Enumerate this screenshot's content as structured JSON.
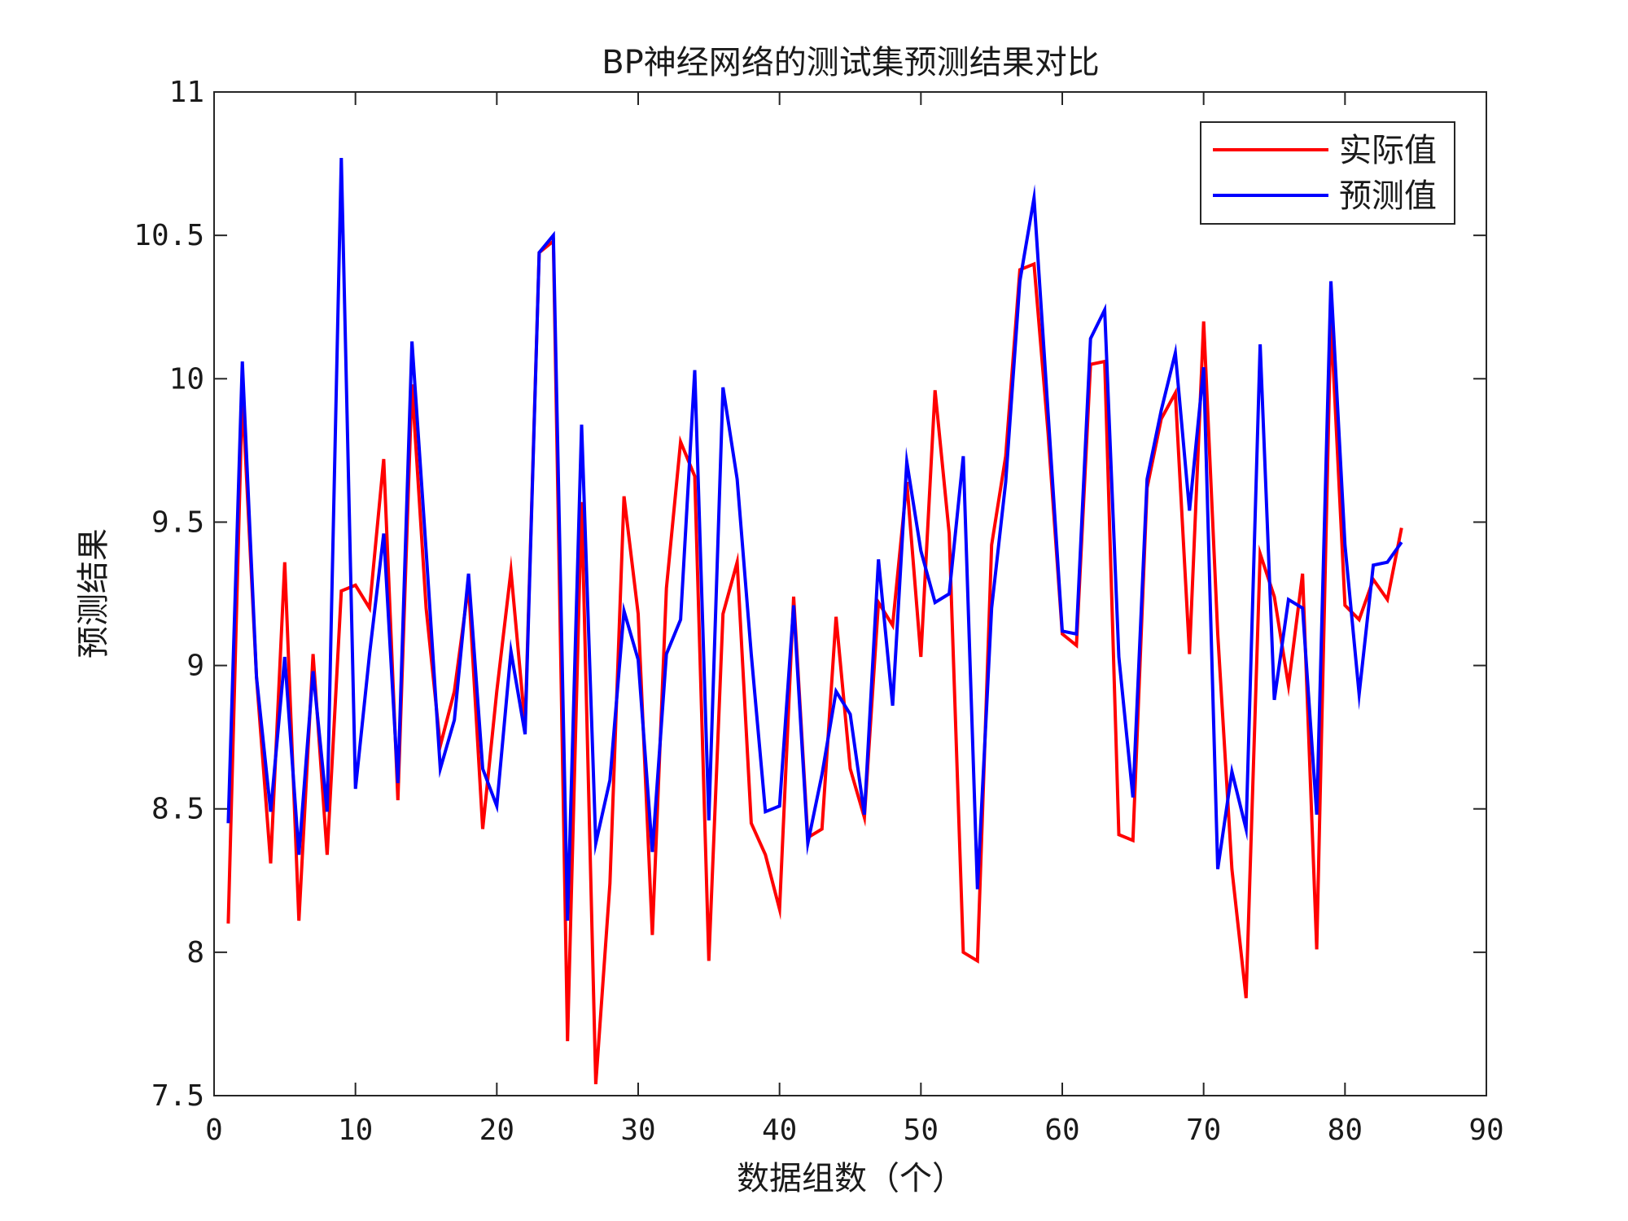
{
  "chart_data": {
    "type": "line",
    "title": "BP神经网络的测试集预测结果对比",
    "xlabel": "数据组数（个）",
    "ylabel": "预测结果",
    "xlim": [
      0,
      90
    ],
    "ylim": [
      7.5,
      11
    ],
    "xticks": [
      0,
      10,
      20,
      30,
      40,
      50,
      60,
      70,
      80,
      90
    ],
    "yticks": [
      7.5,
      8,
      8.5,
      9,
      9.5,
      10,
      10.5,
      11
    ],
    "ytick_labels": [
      "7.5",
      "8",
      "8.5",
      "9",
      "9.5",
      "10",
      "10.5",
      "11"
    ],
    "grid": false,
    "legend_position": "top-right",
    "x": [
      1,
      2,
      3,
      4,
      5,
      6,
      7,
      8,
      9,
      10,
      11,
      12,
      13,
      14,
      15,
      16,
      17,
      18,
      19,
      20,
      21,
      22,
      23,
      24,
      25,
      26,
      27,
      28,
      29,
      30,
      31,
      32,
      33,
      34,
      35,
      36,
      37,
      38,
      39,
      40,
      41,
      42,
      43,
      44,
      45,
      46,
      47,
      48,
      49,
      50,
      51,
      52,
      53,
      54,
      55,
      56,
      57,
      58,
      59,
      60,
      61,
      62,
      63,
      64,
      65,
      66,
      67,
      68,
      69,
      70,
      71,
      72,
      73,
      74,
      75,
      76,
      77,
      78,
      79,
      80,
      81,
      82,
      83,
      84
    ],
    "series": [
      {
        "name": "实际值",
        "color": "#ff0000",
        "values": [
          8.1,
          9.95,
          8.96,
          8.31,
          9.36,
          8.11,
          9.04,
          8.34,
          9.26,
          9.28,
          9.2,
          9.72,
          8.53,
          9.98,
          9.2,
          8.72,
          8.91,
          9.28,
          8.43,
          8.91,
          9.33,
          8.79,
          10.44,
          10.48,
          7.69,
          9.57,
          7.54,
          8.24,
          9.59,
          9.18,
          8.06,
          9.27,
          9.78,
          9.66,
          7.97,
          9.18,
          9.36,
          8.45,
          8.34,
          8.15,
          9.24,
          8.4,
          8.43,
          9.17,
          8.64,
          8.47,
          9.22,
          9.14,
          9.64,
          9.03,
          9.96,
          9.46,
          8.0,
          7.97,
          9.42,
          9.73,
          10.38,
          10.4,
          9.81,
          9.11,
          9.07,
          10.05,
          10.06,
          8.41,
          8.39,
          9.62,
          9.86,
          9.95,
          9.04,
          10.2,
          9.11,
          8.29,
          7.84,
          9.39,
          9.24,
          8.93,
          9.32,
          8.01,
          10.21,
          9.21,
          9.16,
          9.3,
          9.23,
          9.48
        ]
      },
      {
        "name": "预测值",
        "color": "#0000ff",
        "values": [
          8.45,
          10.06,
          8.96,
          8.49,
          9.03,
          8.34,
          8.98,
          8.49,
          10.77,
          8.57,
          9.04,
          9.46,
          8.59,
          10.13,
          9.4,
          8.64,
          8.81,
          9.32,
          8.64,
          8.51,
          9.05,
          8.76,
          10.44,
          10.5,
          8.11,
          9.84,
          8.38,
          8.6,
          9.19,
          9.02,
          8.35,
          9.04,
          9.16,
          10.03,
          8.46,
          9.97,
          9.65,
          9.04,
          8.49,
          8.51,
          9.21,
          8.38,
          8.62,
          8.91,
          8.83,
          8.48,
          9.37,
          8.86,
          9.71,
          9.4,
          9.22,
          9.25,
          9.73,
          8.22,
          9.2,
          9.64,
          10.34,
          10.63,
          9.88,
          9.12,
          9.11,
          10.14,
          10.24,
          9.03,
          8.54,
          9.65,
          9.89,
          10.09,
          9.54,
          10.04,
          8.29,
          8.63,
          8.43,
          10.12,
          8.88,
          9.23,
          9.2,
          8.48,
          10.34,
          9.42,
          8.9,
          9.35,
          9.36,
          9.43
        ]
      }
    ]
  }
}
